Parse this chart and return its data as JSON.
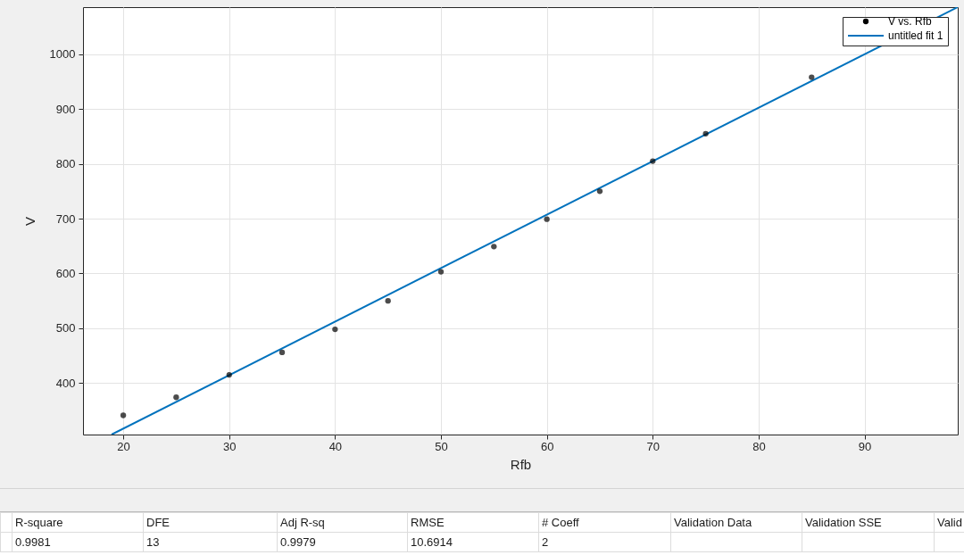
{
  "chart_data": {
    "type": "scatter",
    "xlabel": "Rfb",
    "ylabel": "V",
    "x": [
      20,
      25,
      30,
      35,
      40,
      45,
      50,
      55,
      60,
      65,
      70,
      75,
      85
    ],
    "series": [
      {
        "name": "V vs. Rfb",
        "color": "#000000",
        "marker": "circle",
        "values": [
          341,
          374,
          415,
          456,
          498,
          550,
          603,
          649,
          699,
          750,
          805,
          855,
          958
        ]
      },
      {
        "name": "untitled fit 1",
        "type": "line",
        "color": "#0072bd",
        "x": [
          18.9,
          98.8
        ],
        "values": [
          306,
          1086
        ]
      }
    ],
    "xlim": [
      16.2,
      98.8
    ],
    "ylim": [
      306,
      1086
    ],
    "xticks": [
      20,
      30,
      40,
      50,
      60,
      70,
      80,
      90
    ],
    "yticks": [
      400,
      500,
      600,
      700,
      800,
      900,
      1000
    ],
    "grid": true,
    "legend": "top right",
    "annotations": [
      "R-square",
      "DFE",
      "Adj R-sq",
      "RMSE",
      "# Coeff",
      "Validation Data",
      "Validation SSE",
      "Valid",
      "0.9981",
      "13",
      "0.9979",
      "10.6914",
      "2"
    ]
  }
}
